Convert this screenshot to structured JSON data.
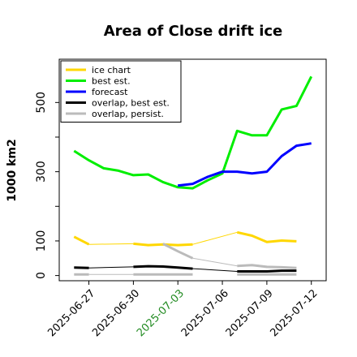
{
  "chart_data": {
    "type": "line",
    "title": "Area of Close drift ice",
    "ylabel": "1000 km2",
    "xlabel": "",
    "ylim": [
      -15,
      625
    ],
    "xlim": [
      "2025-06-25",
      "2025-07-13"
    ],
    "grid": false,
    "legend_placement": "top-left",
    "y_ticks": [
      0,
      100,
      300,
      500
    ],
    "x_ticks": [
      {
        "date": "2025-06-27",
        "label": "2025-06-27",
        "color": "#000000"
      },
      {
        "date": "2025-06-30",
        "label": "2025-06-30",
        "color": "#000000"
      },
      {
        "date": "2025-07-03",
        "label": "2025-07-03",
        "color": "#228b22"
      },
      {
        "date": "2025-07-06",
        "label": "2025-07-06",
        "color": "#000000"
      },
      {
        "date": "2025-07-09",
        "label": "2025-07-09",
        "color": "#000000"
      },
      {
        "date": "2025-07-12",
        "label": "2025-07-12",
        "color": "#000000"
      }
    ],
    "series": [
      {
        "name": "ice chart",
        "color": "#ffd700",
        "line_width": 3,
        "segments": [
          {
            "x": [
              "2025-06-26",
              "2025-06-27"
            ],
            "y": [
              112,
              90
            ],
            "width": 3
          },
          {
            "x": [
              "2025-06-27",
              "2025-06-30"
            ],
            "y": [
              90,
              92
            ],
            "width": 1
          },
          {
            "x": [
              "2025-06-30",
              "2025-07-01",
              "2025-07-02",
              "2025-07-03",
              "2025-07-04"
            ],
            "y": [
              92,
              88,
              90,
              88,
              90
            ],
            "width": 3
          },
          {
            "x": [
              "2025-07-04",
              "2025-07-07"
            ],
            "y": [
              90,
              125
            ],
            "width": 1
          },
          {
            "x": [
              "2025-07-07",
              "2025-07-08",
              "2025-07-09",
              "2025-07-10",
              "2025-07-11"
            ],
            "y": [
              125,
              115,
              97,
              101,
              99
            ],
            "width": 3
          }
        ]
      },
      {
        "name": "best est.",
        "color": "#00ee00",
        "line_width": 3,
        "segments": [
          {
            "x": [
              "2025-06-26",
              "2025-06-27",
              "2025-06-28",
              "2025-06-29",
              "2025-06-30",
              "2025-07-01",
              "2025-07-02",
              "2025-07-03",
              "2025-07-04",
              "2025-07-05",
              "2025-07-06",
              "2025-07-07",
              "2025-07-08",
              "2025-07-09",
              "2025-07-10",
              "2025-07-11",
              "2025-07-12"
            ],
            "y": [
              360,
              333,
              310,
              303,
              290,
              292,
              270,
              255,
              252,
              275,
              295,
              418,
              405,
              405,
              480,
              490,
              575
            ],
            "width": 3
          }
        ]
      },
      {
        "name": "forecast",
        "color": "#0000ff",
        "line_width": 3,
        "segments": [
          {
            "x": [
              "2025-07-03",
              "2025-07-04",
              "2025-07-05",
              "2025-07-06",
              "2025-07-07",
              "2025-07-08",
              "2025-07-09",
              "2025-07-10",
              "2025-07-11",
              "2025-07-12"
            ],
            "y": [
              260,
              265,
              285,
              300,
              300,
              295,
              300,
              345,
              375,
              382
            ],
            "width": 3
          }
        ]
      },
      {
        "name": "overlap, best est.",
        "color": "#000000",
        "line_width": 3,
        "segments": [
          {
            "x": [
              "2025-06-26",
              "2025-06-27"
            ],
            "y": [
              23,
              22
            ],
            "width": 3
          },
          {
            "x": [
              "2025-06-27",
              "2025-06-30"
            ],
            "y": [
              22,
              25
            ],
            "width": 1
          },
          {
            "x": [
              "2025-06-30",
              "2025-07-01",
              "2025-07-02",
              "2025-07-03",
              "2025-07-04"
            ],
            "y": [
              25,
              27,
              26,
              23,
              20
            ],
            "width": 3
          },
          {
            "x": [
              "2025-07-04",
              "2025-07-07"
            ],
            "y": [
              20,
              12
            ],
            "width": 1
          },
          {
            "x": [
              "2025-07-07",
              "2025-07-08",
              "2025-07-09",
              "2025-07-10",
              "2025-07-11"
            ],
            "y": [
              12,
              12,
              12,
              14,
              14
            ],
            "width": 3
          }
        ]
      },
      {
        "name": "overlap, persist.",
        "color": "#bbbbbb",
        "line_width": 3,
        "segments": [
          {
            "x": [
              "2025-06-26",
              "2025-06-27"
            ],
            "y": [
              3,
              3
            ],
            "width": 3
          },
          {
            "x": [
              "2025-06-27",
              "2025-06-30"
            ],
            "y": [
              3,
              3
            ],
            "width": 1
          },
          {
            "x": [
              "2025-06-30",
              "2025-07-01",
              "2025-07-02",
              "2025-07-03",
              "2025-07-04"
            ],
            "y": [
              3,
              3,
              3,
              3,
              3
            ],
            "width": 3
          },
          {
            "x": [
              "2025-07-02",
              "2025-07-03",
              "2025-07-04"
            ],
            "y": [
              92,
              70,
              50
            ],
            "width": 3
          },
          {
            "x": [
              "2025-07-04",
              "2025-07-07"
            ],
            "y": [
              50,
              28
            ],
            "width": 1
          },
          {
            "x": [
              "2025-07-07",
              "2025-07-08",
              "2025-07-09",
              "2025-07-10",
              "2025-07-11"
            ],
            "y": [
              28,
              30,
              25,
              24,
              22
            ],
            "width": 3
          },
          {
            "x": [
              "2025-07-07",
              "2025-07-08",
              "2025-07-09",
              "2025-07-10",
              "2025-07-11"
            ],
            "y": [
              3,
              3,
              3,
              3,
              3
            ],
            "width": 3
          }
        ]
      }
    ]
  }
}
